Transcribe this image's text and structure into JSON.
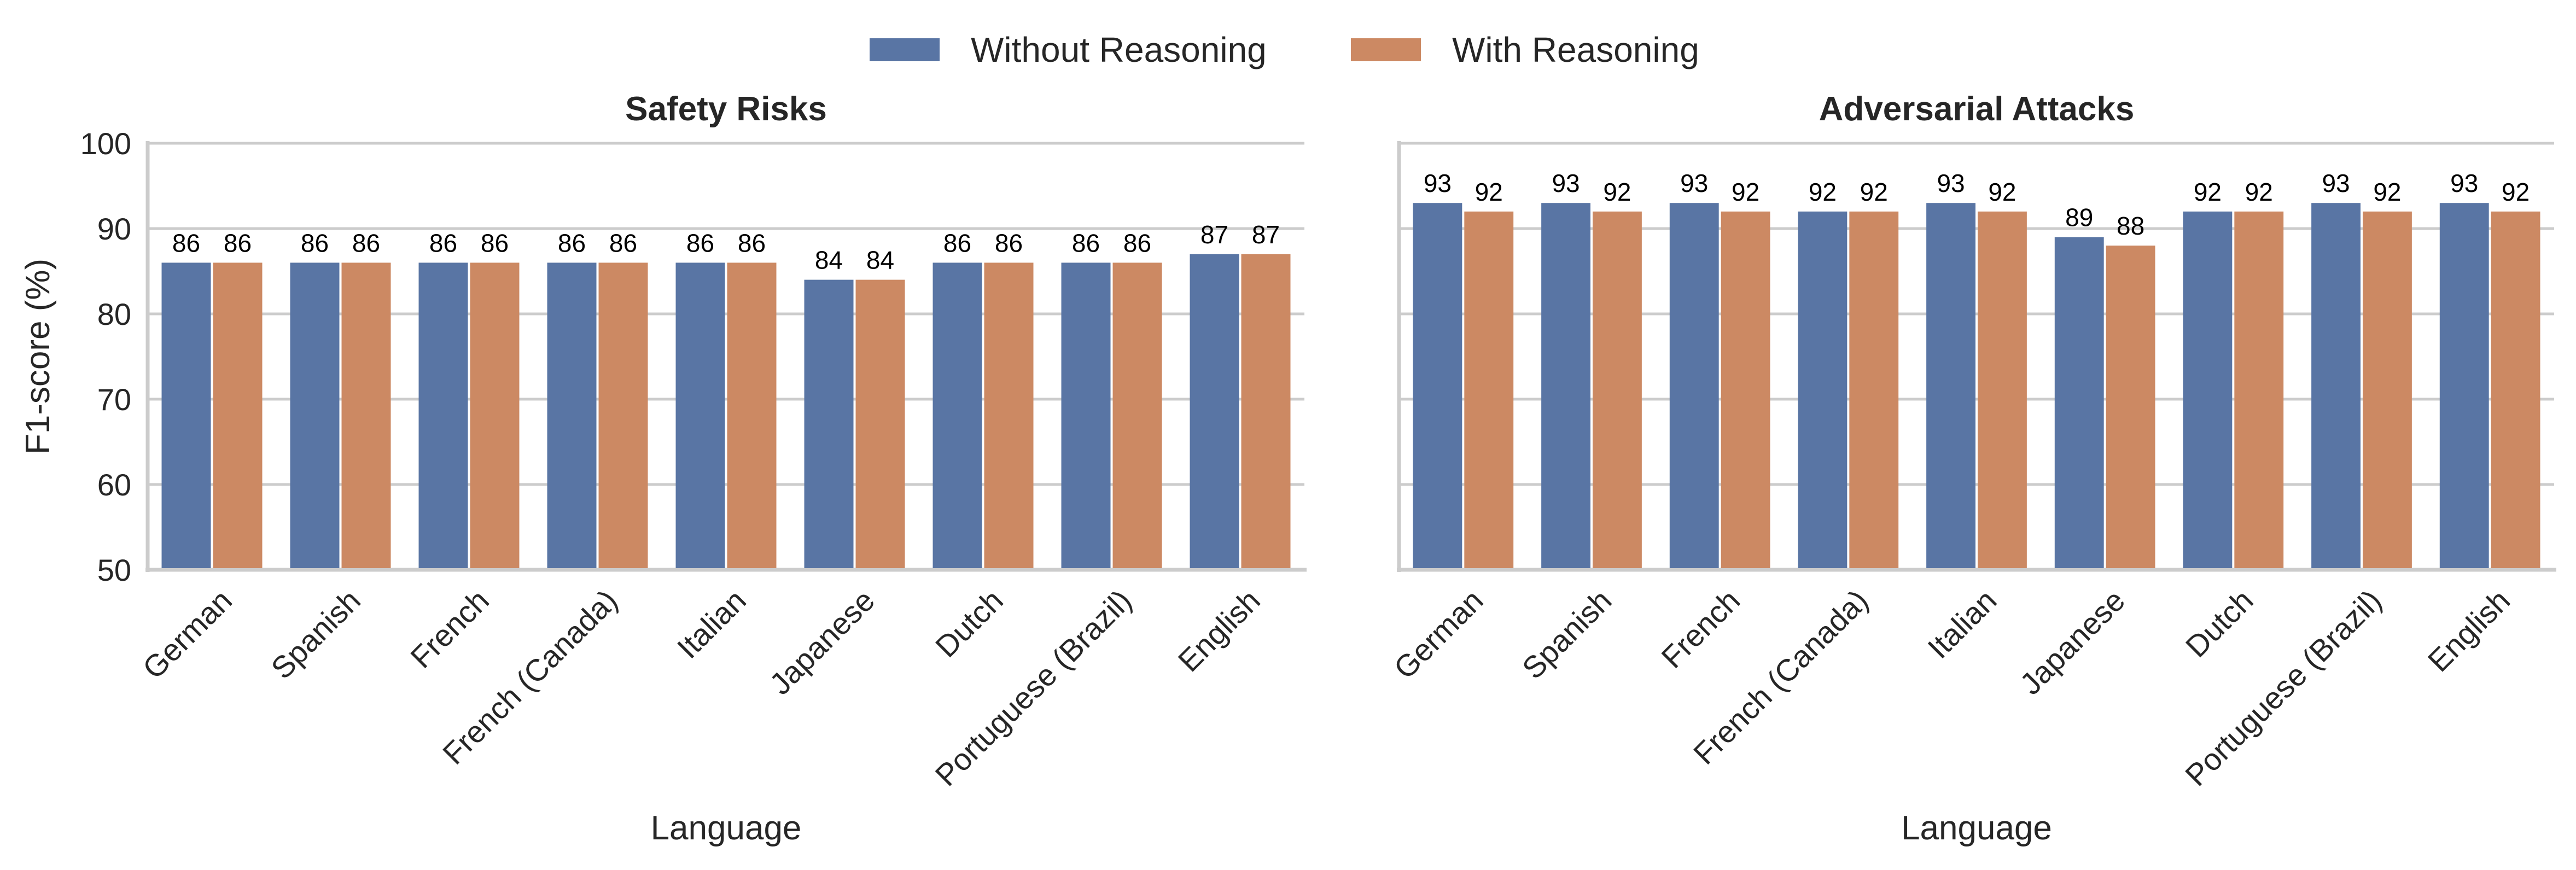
{
  "chart_data": {
    "type": "bar",
    "legend": {
      "placement": "top-center",
      "entries": [
        {
          "name": "Without Reasoning",
          "color": "#5975a4"
        },
        {
          "name": "With Reasoning",
          "color": "#cc8963"
        }
      ]
    },
    "shared_ylabel": "F1-score (%)",
    "ylim": [
      50,
      100
    ],
    "yticks": [
      50,
      60,
      70,
      80,
      90,
      100
    ],
    "grid": "horizontal",
    "panels": [
      {
        "title": "Safety Risks",
        "xlabel": "Language",
        "categories": [
          "German",
          "Spanish",
          "French",
          "French (Canada)",
          "Italian",
          "Japanese",
          "Dutch",
          "Portuguese (Brazil)",
          "English"
        ],
        "series": [
          {
            "name": "Without Reasoning",
            "values": [
              86,
              86,
              86,
              86,
              86,
              84,
              86,
              86,
              87
            ]
          },
          {
            "name": "With Reasoning",
            "values": [
              86,
              86,
              86,
              86,
              86,
              84,
              86,
              86,
              87
            ]
          }
        ]
      },
      {
        "title": "Adversarial Attacks",
        "xlabel": "Language",
        "categories": [
          "German",
          "Spanish",
          "French",
          "French (Canada)",
          "Italian",
          "Japanese",
          "Dutch",
          "Portuguese (Brazil)",
          "English"
        ],
        "series": [
          {
            "name": "Without Reasoning",
            "values": [
              93,
              93,
              93,
              92,
              93,
              89,
              92,
              93,
              93
            ]
          },
          {
            "name": "With Reasoning",
            "values": [
              92,
              92,
              92,
              92,
              92,
              88,
              92,
              92,
              92
            ]
          }
        ]
      }
    ]
  }
}
